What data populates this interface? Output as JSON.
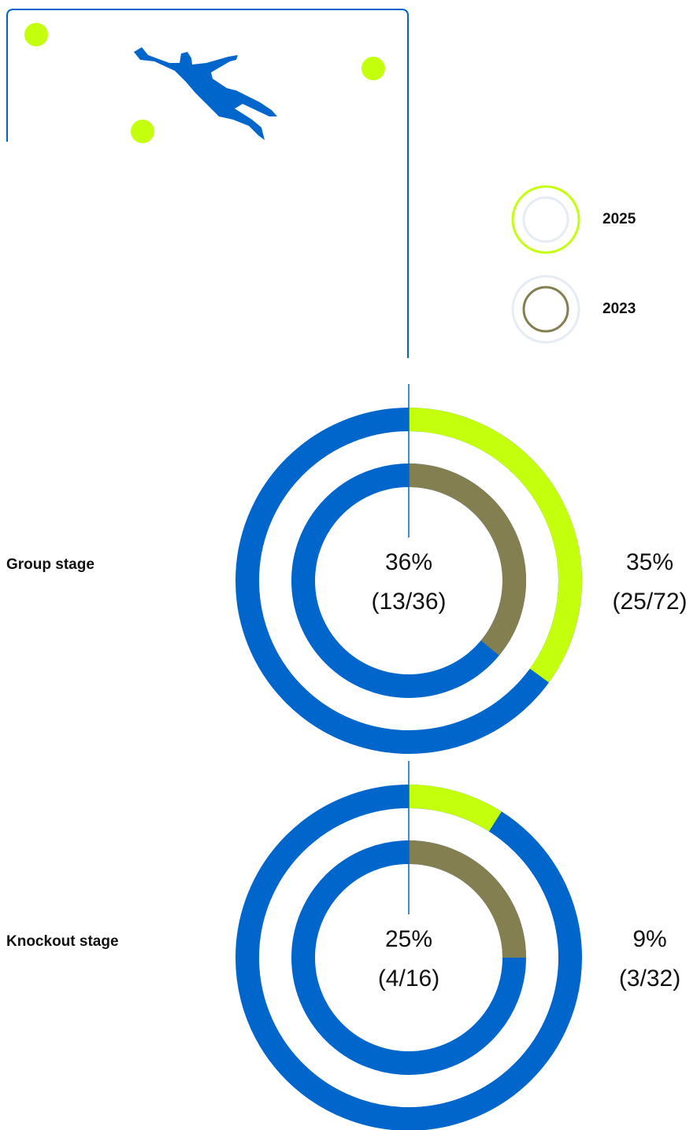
{
  "chart_data": {
    "type": "donut",
    "categories": [
      "Group stage",
      "Knockout stage"
    ],
    "remainder_color": "#0066cc",
    "series": [
      {
        "name": "2025",
        "color": "#c4ff0e",
        "values": [
          35,
          9
        ],
        "value_labels": [
          "35%",
          "9%"
        ],
        "fraction_labels": [
          "(25/72)",
          "(3/32)"
        ]
      },
      {
        "name": "2023",
        "color": "#837f50",
        "values": [
          36,
          25
        ],
        "value_labels": [
          "36%",
          "25%"
        ],
        "fraction_labels": [
          "(13/36)",
          "(4/16)"
        ]
      }
    ]
  }
}
